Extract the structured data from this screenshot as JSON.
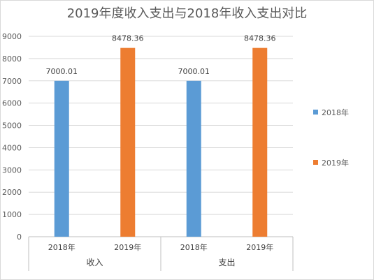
{
  "chart_data": {
    "type": "bar",
    "title": "2019年度收入支出与2018年收入支出对比",
    "xlabel": "",
    "ylabel": "",
    "ylim": [
      0,
      9000
    ],
    "yticks": [
      0,
      1000,
      2000,
      3000,
      4000,
      5000,
      6000,
      7000,
      8000,
      9000
    ],
    "grid": true,
    "legend_position": "right",
    "groups": [
      {
        "name": "收入",
        "categories": [
          "2018年",
          "2019年"
        ],
        "values": [
          7000.01,
          8478.36
        ],
        "labels": [
          "7000.01",
          "8478.36"
        ]
      },
      {
        "name": "支出",
        "categories": [
          "2018年",
          "2019年"
        ],
        "values": [
          7000.01,
          8478.36
        ],
        "labels": [
          "7000.01",
          "8478.36"
        ]
      }
    ],
    "series": [
      {
        "name": "2018年",
        "color": "#5b9bd5"
      },
      {
        "name": "2019年",
        "color": "#ed7d31"
      }
    ]
  }
}
